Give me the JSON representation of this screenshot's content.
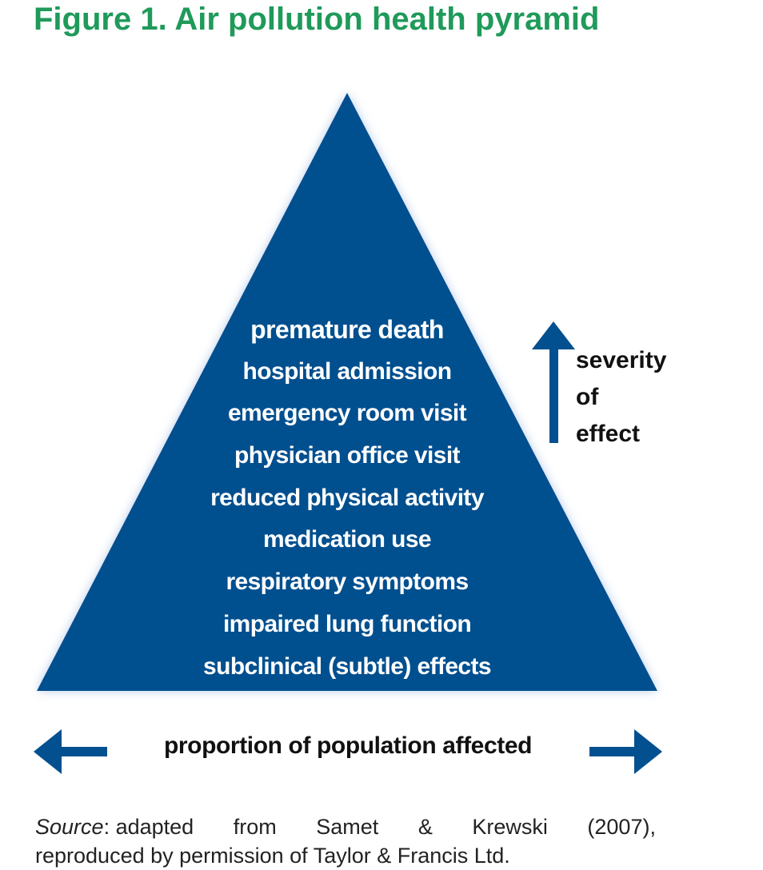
{
  "title": "Figure 1. Air pollution health pyramid",
  "pyramid_levels": [
    "premature death",
    "hospital admission",
    "emergency room visit",
    "physician office visit",
    "reduced physical activity",
    "medication use",
    "respiratory symptoms",
    "impaired lung function",
    "subclinical (subtle) effects"
  ],
  "severity_label": [
    "severity",
    "of",
    "effect"
  ],
  "proportion_label": "proportion of population affected",
  "source": {
    "label": "Source",
    "line1_words": [
      ": adapted",
      "from",
      "Samet",
      "&",
      "Krewski",
      "(2007),"
    ],
    "line2": "reproduced by permission of Taylor & Francis Ltd."
  },
  "colors": {
    "pyramid_fill": "#02508f",
    "arrow": "#02508f",
    "title": "#1f9a5a",
    "glow": "#b8cdea"
  },
  "icons": {
    "up": "arrow-up-icon",
    "left": "arrow-left-icon",
    "right": "arrow-right-icon"
  }
}
